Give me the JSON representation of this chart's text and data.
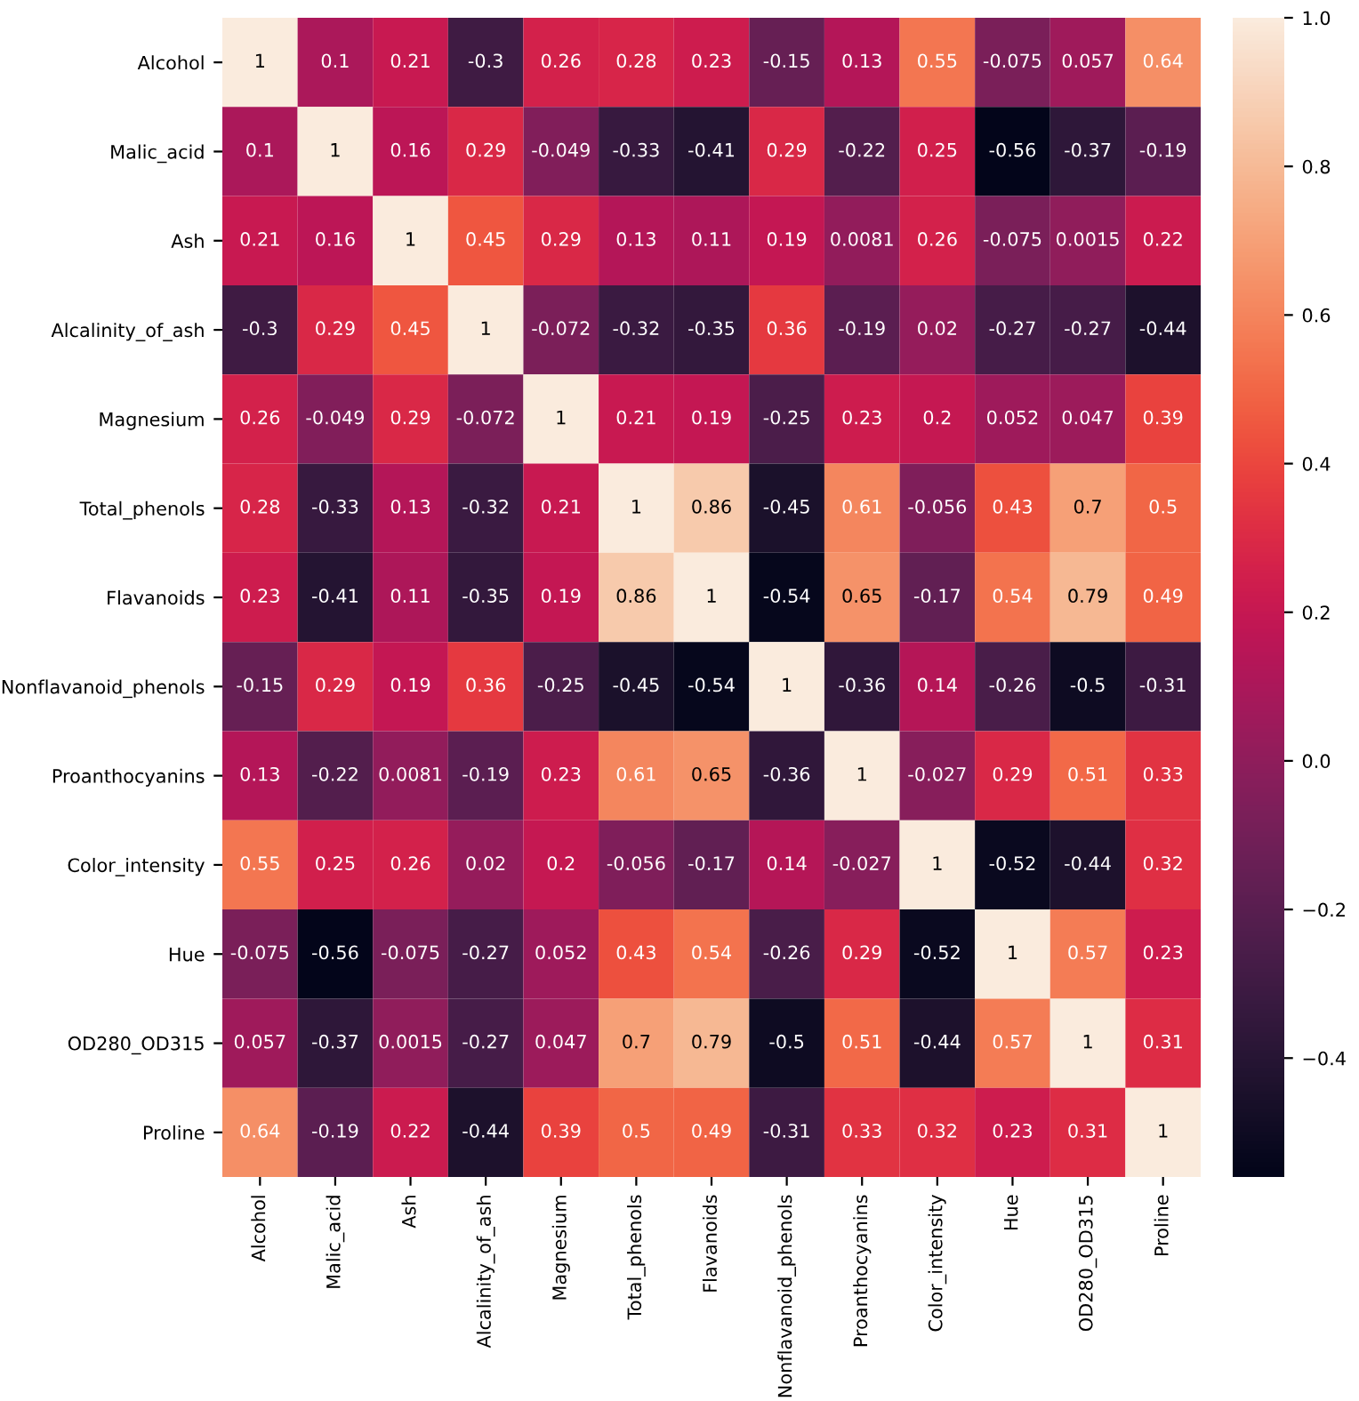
{
  "chart_data": {
    "type": "heatmap",
    "categories": [
      "Alcohol",
      "Malic_acid",
      "Ash",
      "Alcalinity_of_ash",
      "Magnesium",
      "Total_phenols",
      "Flavanoids",
      "Nonflavanoid_phenols",
      "Proanthocyanins",
      "Color_intensity",
      "Hue",
      "OD280_OD315",
      "Proline"
    ],
    "y_categories": [
      "Alcohol",
      "Malic_acid",
      "Ash",
      "Alcalinity_of_ash",
      "Magnesium",
      "Total_phenols",
      "Flavanoids",
      "Nonflavanoid_phenols",
      "Proanthocyanins",
      "Color_intensity",
      "Hue",
      "OD280_OD315",
      "Proline"
    ],
    "cells": [
      [
        1,
        0.1,
        0.21,
        -0.3,
        0.26,
        0.28,
        0.23,
        -0.15,
        0.13,
        0.55,
        -0.075,
        0.057,
        0.64
      ],
      [
        0.1,
        1,
        0.16,
        0.29,
        -0.049,
        -0.33,
        -0.41,
        0.29,
        -0.22,
        0.25,
        -0.56,
        -0.37,
        -0.19
      ],
      [
        0.21,
        0.16,
        1,
        0.45,
        0.29,
        0.13,
        0.11,
        0.19,
        0.0081,
        0.26,
        -0.075,
        0.0015,
        0.22
      ],
      [
        -0.3,
        0.29,
        0.45,
        1,
        -0.072,
        -0.32,
        -0.35,
        0.36,
        -0.19,
        0.02,
        -0.27,
        -0.27,
        -0.44
      ],
      [
        0.26,
        -0.049,
        0.29,
        -0.072,
        1,
        0.21,
        0.19,
        -0.25,
        0.23,
        0.2,
        0.052,
        0.047,
        0.39
      ],
      [
        0.28,
        -0.33,
        0.13,
        -0.32,
        0.21,
        1,
        0.86,
        -0.45,
        0.61,
        -0.056,
        0.43,
        0.7,
        0.5
      ],
      [
        0.23,
        -0.41,
        0.11,
        -0.35,
        0.19,
        0.86,
        1,
        -0.54,
        0.65,
        -0.17,
        0.54,
        0.79,
        0.49
      ],
      [
        -0.15,
        0.29,
        0.19,
        0.36,
        -0.25,
        -0.45,
        -0.54,
        1,
        -0.36,
        0.14,
        -0.26,
        -0.5,
        -0.31
      ],
      [
        0.13,
        -0.22,
        0.0081,
        -0.19,
        0.23,
        0.61,
        0.65,
        -0.36,
        1,
        -0.027,
        0.29,
        0.51,
        0.33
      ],
      [
        0.55,
        0.25,
        0.26,
        0.02,
        0.2,
        -0.056,
        -0.17,
        0.14,
        -0.027,
        1,
        -0.52,
        -0.44,
        0.32
      ],
      [
        -0.075,
        -0.56,
        -0.075,
        -0.27,
        0.052,
        0.43,
        0.54,
        -0.26,
        0.29,
        -0.52,
        1,
        0.57,
        0.23
      ],
      [
        0.057,
        -0.37,
        0.0015,
        -0.27,
        0.047,
        0.7,
        0.79,
        -0.5,
        0.51,
        -0.44,
        0.57,
        1,
        0.31
      ],
      [
        0.64,
        -0.19,
        0.22,
        -0.44,
        0.39,
        0.5,
        0.49,
        -0.31,
        0.33,
        0.32,
        0.23,
        0.31,
        1
      ]
    ],
    "clim": [
      -0.56,
      1
    ],
    "cticks": [
      {
        "value": -0.4,
        "label": "−0.4"
      },
      {
        "value": -0.2,
        "label": "−0.2"
      },
      {
        "value": 0,
        "label": "0.0"
      },
      {
        "value": 0.2,
        "label": "0.2"
      },
      {
        "value": 0.4,
        "label": "0.4"
      },
      {
        "value": 0.6,
        "label": "0.6"
      },
      {
        "value": 0.8,
        "label": "0.8"
      },
      {
        "value": 1,
        "label": "1.0"
      }
    ],
    "data_labels": true
  }
}
